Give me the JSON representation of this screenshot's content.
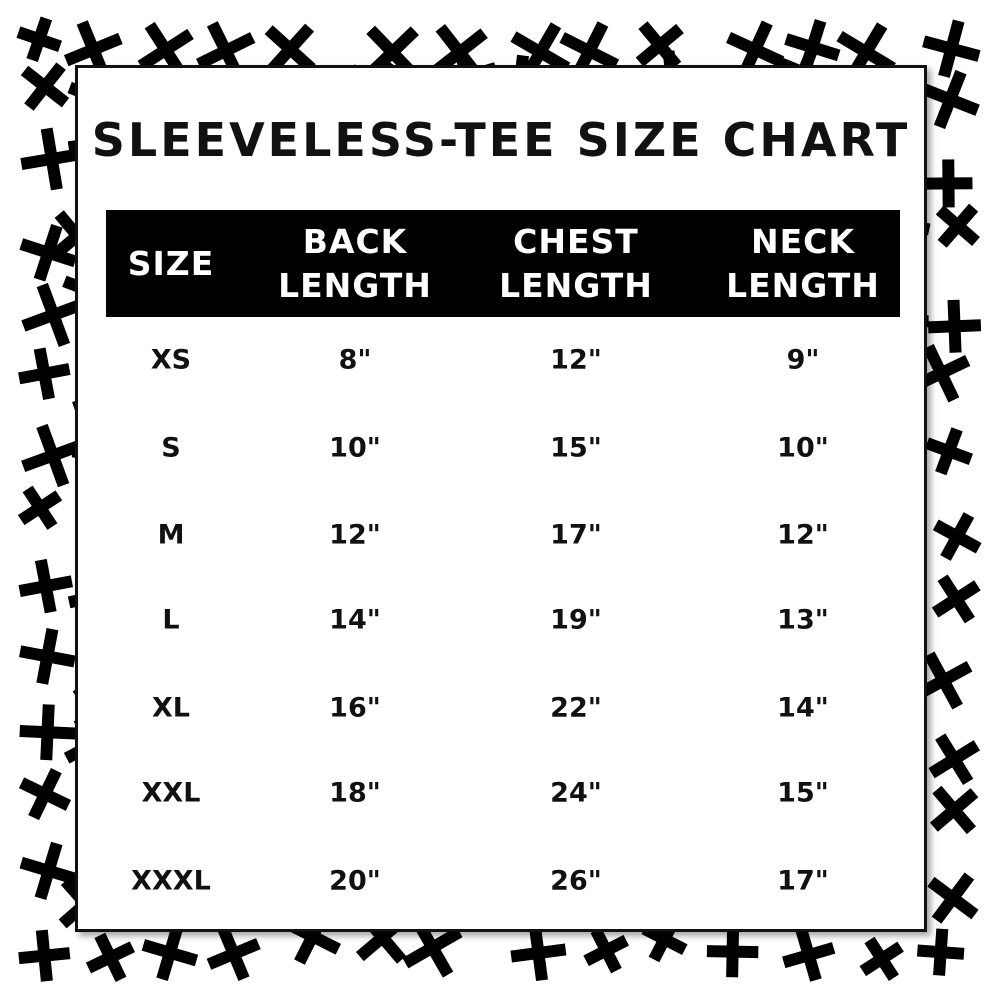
{
  "title": "SLEEVELESS-TEE SIZE CHART",
  "colors": {
    "background": "#ffffff",
    "pattern": "#000000",
    "header_bg": "#000000",
    "header_text": "#ffffff",
    "text": "#111111"
  },
  "background_pattern": "cross-icon",
  "table": {
    "headers": [
      "SIZE",
      "BACK\nLENGTH",
      "CHEST\nLENGTH",
      "NECK\nLENGTH"
    ],
    "rows": [
      [
        "XS",
        "8\"",
        "12\"",
        "9\""
      ],
      [
        "S",
        "10\"",
        "15\"",
        "10\""
      ],
      [
        "M",
        "12\"",
        "17\"",
        "12\""
      ],
      [
        "L",
        "14\"",
        "19\"",
        "13\""
      ],
      [
        "XL",
        "16\"",
        "22\"",
        "14\""
      ],
      [
        "XXL",
        "18\"",
        "24\"",
        "15\""
      ],
      [
        "XXXL",
        "20\"",
        "26\"",
        "17\""
      ]
    ]
  }
}
